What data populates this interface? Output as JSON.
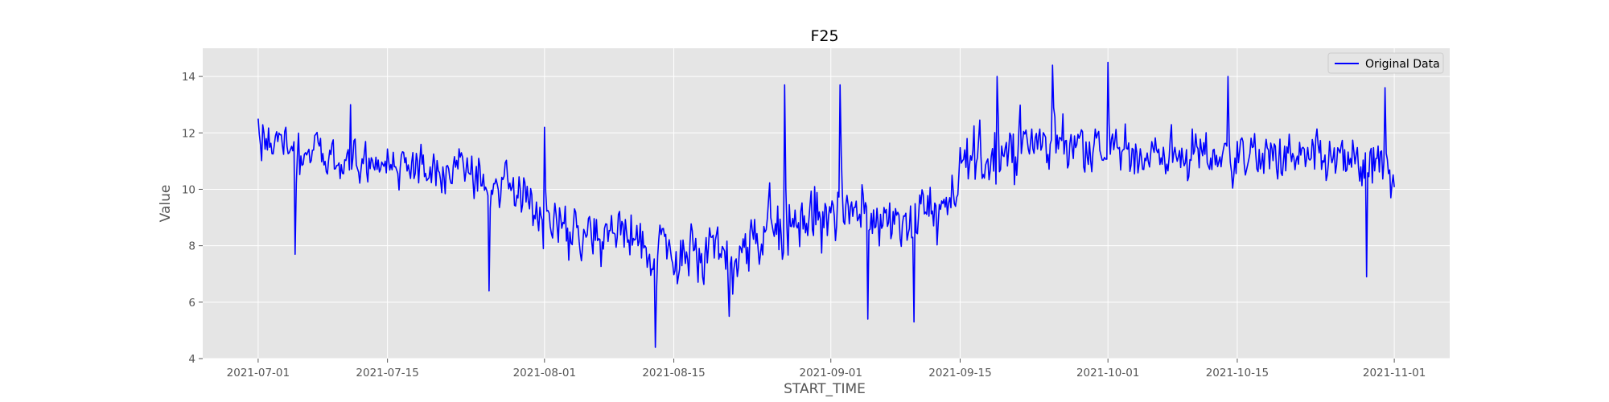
{
  "chart_data": {
    "type": "line",
    "title": "F25",
    "xlabel": "START_TIME",
    "ylabel": "Value",
    "xlim": [
      "2021-06-25",
      "2021-11-07"
    ],
    "ylim": [
      4,
      15
    ],
    "x_ticks": [
      "2021-07-01",
      "2021-07-15",
      "2021-08-01",
      "2021-08-15",
      "2021-09-01",
      "2021-09-15",
      "2021-10-01",
      "2021-10-15",
      "2021-11-01"
    ],
    "y_ticks": [
      "4",
      "6",
      "8",
      "10",
      "12",
      "14"
    ],
    "grid": true,
    "legend_position": "top-right",
    "colors": {
      "line": "#0000ff",
      "plot_bg": "#e5e5e5",
      "grid": "#ffffff",
      "text": "#555555"
    },
    "series": [
      {
        "name": "Original Data",
        "x_start": "2021-07-01",
        "x_end": "2021-11-01",
        "samples_per_day": 8,
        "trend": [
          [
            "2021-07-01",
            11.8
          ],
          [
            "2021-07-10",
            10.9
          ],
          [
            "2021-07-20",
            10.8
          ],
          [
            "2021-07-28",
            10.3
          ],
          [
            "2021-08-01",
            8.8
          ],
          [
            "2021-08-10",
            8.4
          ],
          [
            "2021-08-15",
            7.6
          ],
          [
            "2021-08-22",
            7.6
          ],
          [
            "2021-08-26",
            8.6
          ],
          [
            "2021-09-01",
            9.2
          ],
          [
            "2021-09-08",
            9.0
          ],
          [
            "2021-09-14",
            9.4
          ],
          [
            "2021-09-16",
            11.0
          ],
          [
            "2021-09-22",
            11.6
          ],
          [
            "2021-09-28",
            11.7
          ],
          [
            "2021-10-01",
            11.3
          ],
          [
            "2021-10-10",
            11.2
          ],
          [
            "2021-10-20",
            11.1
          ],
          [
            "2021-10-28",
            10.9
          ],
          [
            "2021-11-01",
            10.6
          ]
        ],
        "amplitude": [
          [
            "2021-07-01",
            1.1
          ],
          [
            "2021-07-25",
            1.1
          ],
          [
            "2021-08-01",
            1.4
          ],
          [
            "2021-08-20",
            1.3
          ],
          [
            "2021-08-26",
            1.8
          ],
          [
            "2021-09-15",
            1.7
          ],
          [
            "2021-10-01",
            1.3
          ],
          [
            "2021-11-01",
            1.3
          ]
        ],
        "extremes": [
          [
            "2021-07-05",
            7.7
          ],
          [
            "2021-07-11",
            13.0
          ],
          [
            "2021-07-26",
            6.4
          ],
          [
            "2021-08-01",
            12.2
          ],
          [
            "2021-08-13",
            4.4
          ],
          [
            "2021-08-21",
            5.5
          ],
          [
            "2021-08-27",
            13.7
          ],
          [
            "2021-09-02",
            13.7
          ],
          [
            "2021-09-05",
            5.4
          ],
          [
            "2021-09-10",
            5.3
          ],
          [
            "2021-09-19",
            14.0
          ],
          [
            "2021-09-25",
            14.4
          ],
          [
            "2021-10-01",
            14.5
          ],
          [
            "2021-10-14",
            14.0
          ],
          [
            "2021-10-29",
            6.9
          ],
          [
            "2021-10-31",
            13.6
          ]
        ]
      }
    ]
  }
}
